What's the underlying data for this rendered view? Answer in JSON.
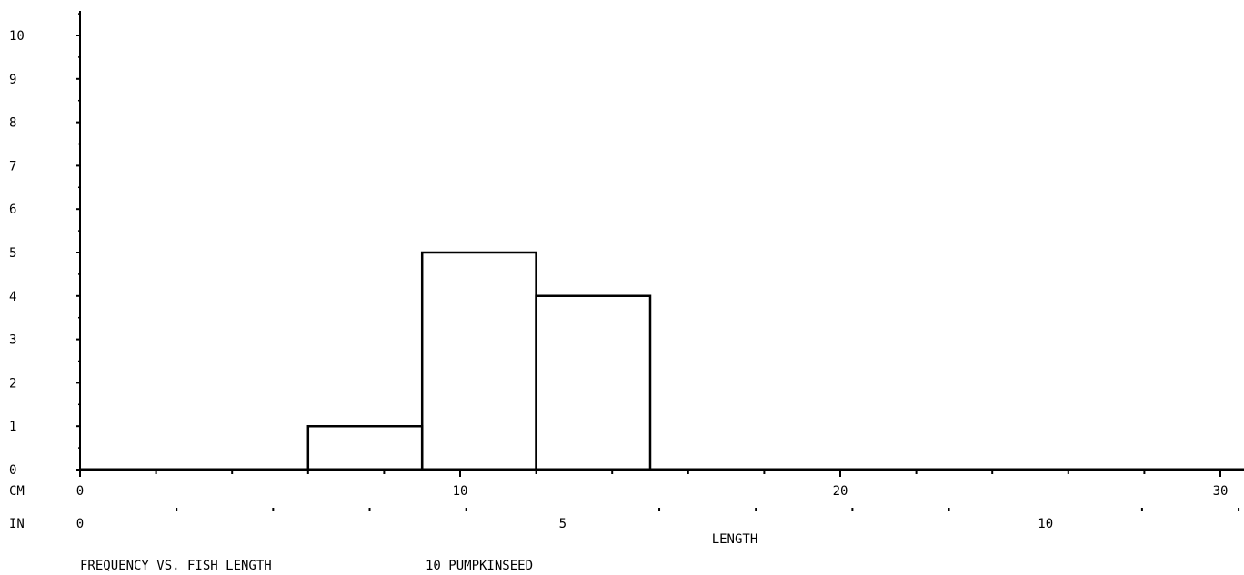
{
  "chart_data": {
    "type": "histogram",
    "title": "FREQUENCY VS. FISH LENGTH",
    "subtitle": "10 PUMPKINSEED",
    "xlabel": "LENGTH",
    "ylabel": "",
    "ylim": [
      0,
      10.5
    ],
    "yticks": [
      "0",
      "1",
      "2",
      "3",
      "4",
      "5",
      "6",
      "7",
      "8",
      "9",
      "10"
    ],
    "x_axes": [
      {
        "unit": "CM",
        "range": [
          0,
          30.5
        ],
        "tick_labels": [
          "0",
          "10",
          "20",
          "30"
        ],
        "minor_step": 2
      },
      {
        "unit": "IN",
        "range": [
          0,
          12
        ],
        "tick_labels": [
          "0",
          "5",
          "10"
        ],
        "minor_step": 1
      }
    ],
    "bins": [
      {
        "start": 6,
        "end": 9,
        "count": 1
      },
      {
        "start": 9,
        "end": 12,
        "count": 5
      },
      {
        "start": 12,
        "end": 15,
        "count": 4
      }
    ],
    "grid": false,
    "legend": "none",
    "line_color": "#000000",
    "background_color": "#ffffff"
  }
}
